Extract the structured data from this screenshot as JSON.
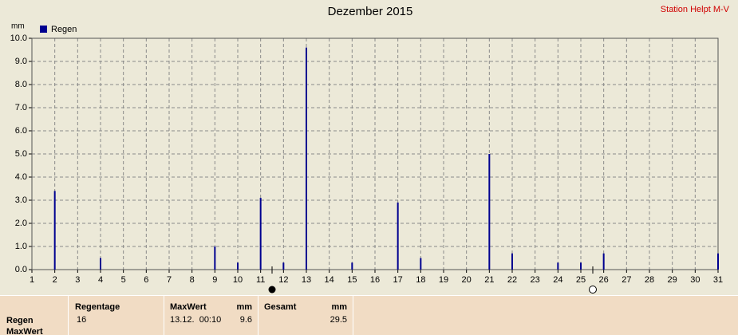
{
  "chart_data": {
    "type": "bar",
    "title": "Dezember 2015",
    "station": "Station Helpt M-V",
    "y_unit": "mm",
    "x": [
      2,
      4,
      9,
      10,
      11,
      12,
      13,
      15,
      17,
      18,
      21,
      22,
      24,
      25,
      26,
      31
    ],
    "series": [
      {
        "name": "Regen",
        "color": "#000090",
        "values": [
          3.4,
          0.5,
          1.0,
          0.3,
          3.1,
          0.3,
          9.6,
          0.3,
          2.9,
          0.5,
          5.0,
          0.7,
          0.3,
          0.3,
          0.7,
          0.7
        ]
      }
    ],
    "xlim": [
      1,
      31
    ],
    "xticks": [
      1,
      2,
      3,
      4,
      5,
      6,
      7,
      8,
      9,
      10,
      11,
      12,
      13,
      14,
      15,
      16,
      17,
      18,
      19,
      20,
      21,
      22,
      23,
      24,
      25,
      26,
      27,
      28,
      29,
      30,
      31
    ],
    "ylim": [
      0,
      10
    ],
    "yticks": [
      {
        "value": 0,
        "label": "0.0"
      },
      {
        "value": 1,
        "label": "1.0"
      },
      {
        "value": 2,
        "label": "2.0"
      },
      {
        "value": 3,
        "label": "3.0"
      },
      {
        "value": 4,
        "label": "4.0"
      },
      {
        "value": 5,
        "label": "5.0"
      },
      {
        "value": 6,
        "label": "6.0"
      },
      {
        "value": 7,
        "label": "7.0"
      },
      {
        "value": 8,
        "label": "8.0"
      },
      {
        "value": 9,
        "label": "9.0"
      },
      {
        "value": 10,
        "label": "10.0"
      }
    ],
    "grid": true
  },
  "table": {
    "row_labels": [
      "Regen",
      "MaxWert"
    ],
    "headers": [
      "Regentage",
      "MaxWert",
      "mm",
      "Gesamt",
      "mm"
    ],
    "cells": [
      "16",
      "13.12.  00:10",
      "9.6",
      "29.5"
    ]
  }
}
